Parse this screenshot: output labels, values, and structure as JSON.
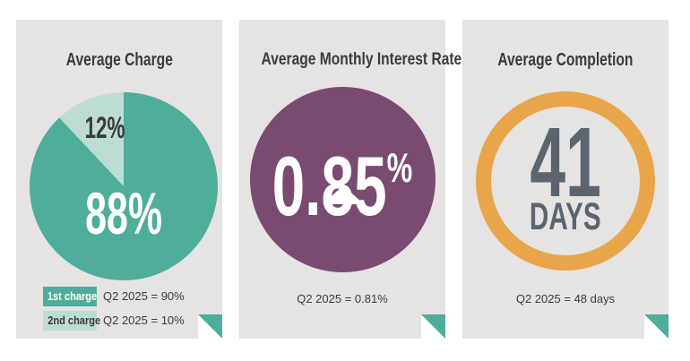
{
  "colors": {
    "teal": "#4FAD9B",
    "teal-light": "#BDDDD4",
    "purple": "#7A4A71",
    "orange": "#E8A54A",
    "slate": "#5B6570",
    "ink": "#3B3B3A",
    "card-bg": "#E5E4E2",
    "white": "#FFFFFF"
  },
  "cards": {
    "charge": {
      "title": "Average Charge",
      "major_label": "88%",
      "minor_label": "12%",
      "legend": [
        {
          "label": "1st charge",
          "value": "Q2 2025 = 90%"
        },
        {
          "label": "2nd charge",
          "value": "Q2 2025 = 10%"
        }
      ]
    },
    "interest": {
      "title": "Average Monthly Interest Rate",
      "value": "0.85",
      "unit": "%",
      "trend": "up",
      "caption": "Q2 2025 = 0.81%"
    },
    "completion": {
      "title": "Average Completion",
      "value": "41",
      "unit": "DAYS",
      "caption": "Q2 2025 = 48 days"
    }
  },
  "chart_data": [
    {
      "type": "pie",
      "title": "Average Charge",
      "labels": [
        "1st charge",
        "2nd charge"
      ],
      "values": [
        88,
        12
      ],
      "unit": "%",
      "colors": [
        "#4FAD9B",
        "#BDDDD4"
      ],
      "legend_position": "bottom-left",
      "annotations": [
        "Q2 2025 = 90%",
        "Q2 2025 = 10%"
      ]
    },
    {
      "type": "kpi",
      "title": "Average Monthly Interest Rate",
      "value": 0.85,
      "unit": "%",
      "trend": "up",
      "comparison": "Q2 2025 = 0.81%"
    },
    {
      "type": "kpi",
      "title": "Average Completion",
      "value": 41,
      "unit": "days",
      "comparison": "Q2 2025 = 48 days"
    }
  ]
}
